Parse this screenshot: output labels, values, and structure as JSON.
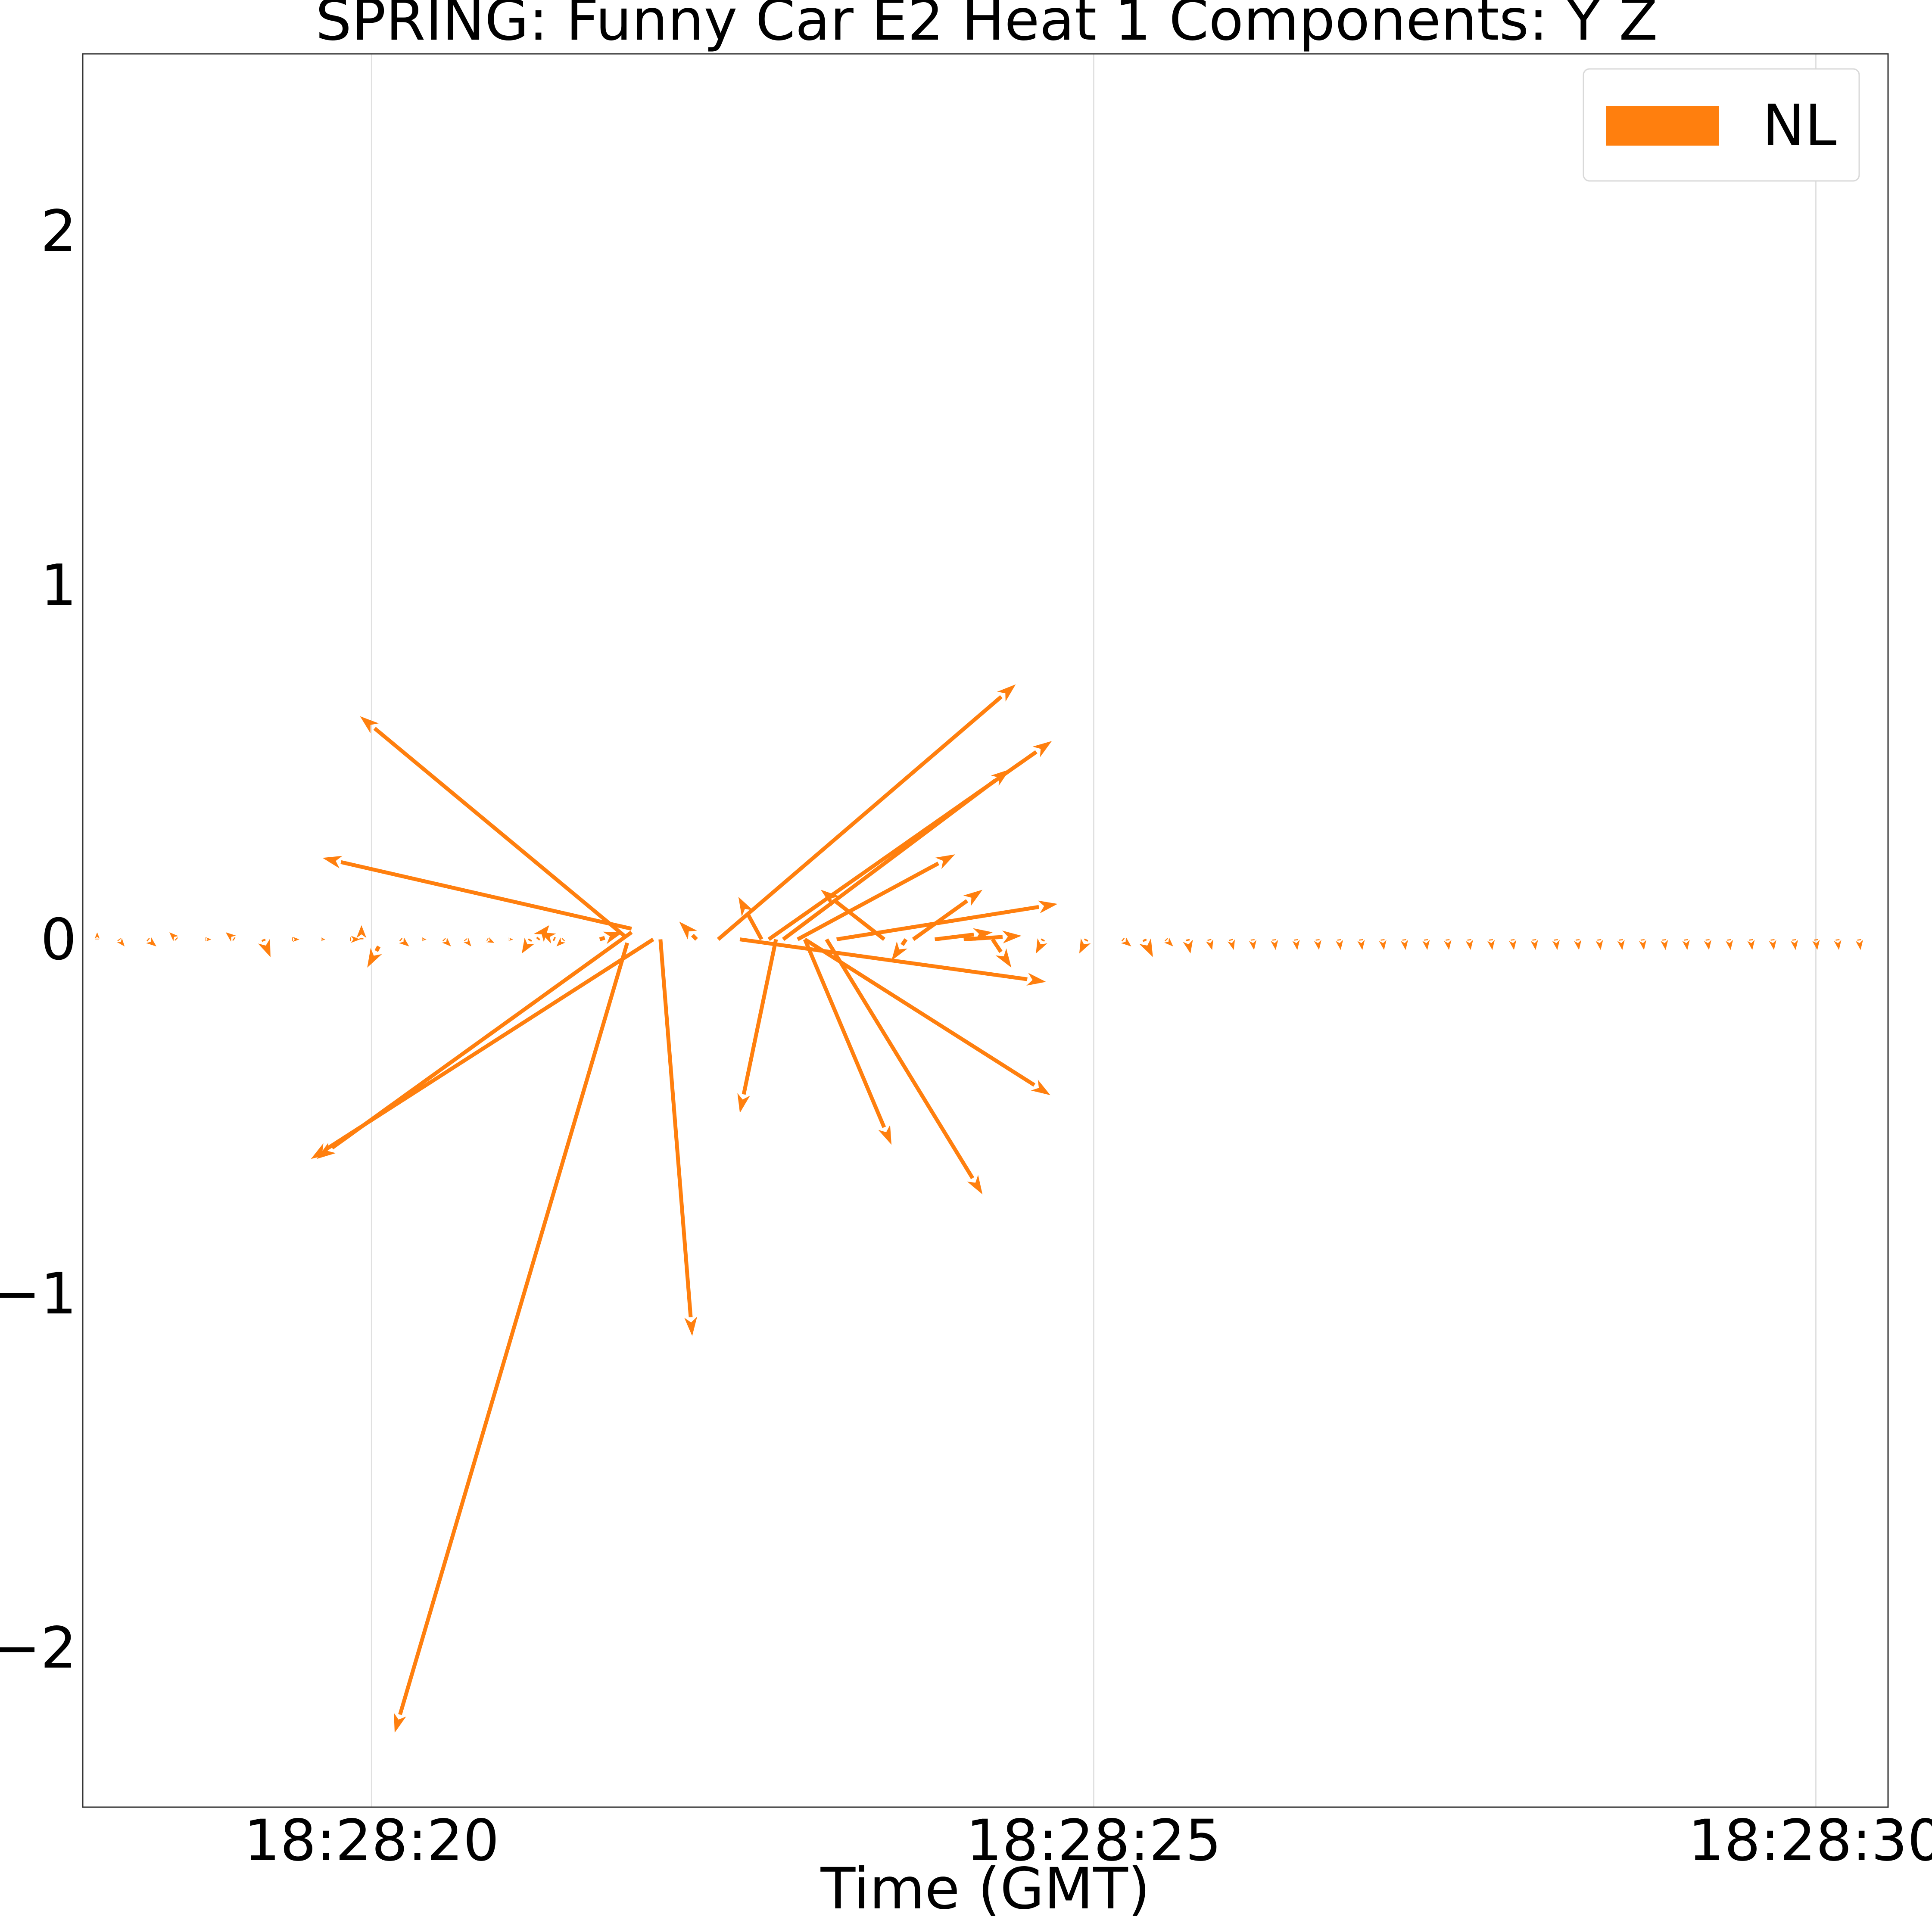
{
  "chart_data": {
    "type": "quiver",
    "title": "SPRING: Funny Car E2 Heat 1 Components: Y Z",
    "xlabel": "Time (GMT)",
    "ylabel": "",
    "x_ticks": [
      "18:28:20",
      "18:28:25",
      "18:28:30"
    ],
    "x_tick_seconds": [
      20,
      25,
      30
    ],
    "xlim_seconds": [
      18.0,
      30.5
    ],
    "y_ticks": [
      2,
      1,
      0,
      -1,
      -2
    ],
    "y_tick_labels": [
      "2",
      "1",
      "0",
      "−1",
      "−2"
    ],
    "ylim": [
      -2.45,
      2.5
    ],
    "grid": "x",
    "legend": {
      "position": "top-right",
      "entries": [
        {
          "label": "NL",
          "color": "#ff7f0e"
        }
      ]
    },
    "series": [
      {
        "name": "NL",
        "color": "#ff7f0e",
        "vectors": [
          [
            18.1,
            0.0,
            0.0,
            0.02
          ],
          [
            18.25,
            0.0,
            0.04,
            -0.02
          ],
          [
            18.45,
            0.0,
            0.06,
            -0.02
          ],
          [
            18.65,
            0.0,
            -0.05,
            0.02
          ],
          [
            18.85,
            0.0,
            0.04,
            0.0
          ],
          [
            19.05,
            0.0,
            -0.06,
            0.02
          ],
          [
            19.25,
            0.0,
            0.05,
            -0.05
          ],
          [
            19.45,
            0.0,
            0.05,
            0.0
          ],
          [
            19.65,
            0.0,
            0.03,
            0.0
          ],
          [
            19.85,
            0.0,
            0.07,
            0.0
          ],
          [
            19.93,
            0.0,
            0.0,
            0.04
          ],
          [
            20.05,
            -0.02,
            -0.08,
            -0.06
          ],
          [
            20.2,
            0.0,
            0.06,
            -0.02
          ],
          [
            20.35,
            0.0,
            0.03,
            0.0
          ],
          [
            20.5,
            0.0,
            0.05,
            -0.02
          ],
          [
            20.65,
            0.0,
            0.04,
            -0.02
          ],
          [
            20.8,
            0.0,
            0.05,
            -0.01
          ],
          [
            20.95,
            0.0,
            0.03,
            0.0
          ],
          [
            21.1,
            0.0,
            -0.06,
            -0.04
          ],
          [
            21.15,
            0.0,
            0.08,
            0.04
          ],
          [
            21.27,
            0.0,
            -0.1,
            0.02
          ],
          [
            21.33,
            0.0,
            -0.05,
            -0.02
          ],
          [
            21.8,
            0.03,
            -2.14,
            0.2
          ],
          [
            21.75,
            0.01,
            -1.83,
            0.62
          ],
          [
            21.58,
            0.0,
            0.16,
            0.02
          ],
          [
            21.8,
            0.02,
            -2.18,
            -0.64
          ],
          [
            21.77,
            -0.01,
            -1.61,
            -2.23
          ],
          [
            21.95,
            0.0,
            -2.37,
            -0.62
          ],
          [
            22.0,
            0.0,
            0.22,
            -1.12
          ],
          [
            22.25,
            0.0,
            -0.12,
            0.05
          ],
          [
            22.4,
            0.0,
            2.06,
            0.72
          ],
          [
            22.8,
            0.0,
            -0.25,
            -0.49
          ],
          [
            22.55,
            0.0,
            2.12,
            -0.12
          ],
          [
            22.75,
            0.0,
            1.96,
            0.56
          ],
          [
            22.85,
            0.0,
            1.57,
            0.48
          ],
          [
            22.7,
            0.0,
            -0.16,
            0.12
          ],
          [
            23.0,
            0.0,
            0.6,
            -0.58
          ],
          [
            22.95,
            0.0,
            1.09,
            0.24
          ],
          [
            23.15,
            0.0,
            1.08,
            -0.72
          ],
          [
            23.22,
            0.0,
            1.53,
            0.1
          ],
          [
            23.0,
            0.0,
            1.7,
            -0.44
          ],
          [
            23.55,
            0.0,
            -0.44,
            0.14
          ],
          [
            23.7,
            0.0,
            -0.1,
            -0.06
          ],
          [
            23.75,
            0.0,
            0.48,
            0.14
          ],
          [
            23.9,
            0.0,
            0.4,
            0.02
          ],
          [
            24.1,
            0.0,
            0.4,
            0.01
          ],
          [
            24.3,
            0.0,
            0.13,
            -0.08
          ],
          [
            24.65,
            0.0,
            -0.05,
            -0.04
          ],
          [
            24.95,
            0.0,
            -0.05,
            -0.04
          ],
          [
            25.2,
            0.0,
            0.06,
            -0.02
          ],
          [
            25.35,
            0.0,
            0.06,
            -0.05
          ],
          [
            25.5,
            0.0,
            0.05,
            -0.02
          ],
          [
            25.65,
            0.0,
            0.02,
            -0.04
          ],
          [
            25.8,
            0.0,
            0.02,
            -0.03
          ],
          [
            25.95,
            0.0,
            0.02,
            -0.03
          ],
          [
            26.1,
            0.0,
            0.01,
            -0.03
          ],
          [
            26.25,
            0.0,
            0.01,
            -0.03
          ],
          [
            26.4,
            0.0,
            0.01,
            -0.03
          ],
          [
            26.55,
            0.0,
            0.01,
            -0.03
          ],
          [
            26.7,
            0.0,
            0.01,
            -0.03
          ],
          [
            26.85,
            0.0,
            0.01,
            -0.03
          ],
          [
            27.0,
            0.0,
            0.01,
            -0.03
          ],
          [
            27.15,
            0.0,
            0.01,
            -0.03
          ],
          [
            27.3,
            0.0,
            0.01,
            -0.03
          ],
          [
            27.45,
            0.0,
            0.01,
            -0.03
          ],
          [
            27.6,
            0.0,
            0.01,
            -0.03
          ],
          [
            27.75,
            0.0,
            0.01,
            -0.03
          ],
          [
            27.9,
            0.0,
            0.01,
            -0.03
          ],
          [
            28.05,
            0.0,
            0.01,
            -0.03
          ],
          [
            28.2,
            0.0,
            0.01,
            -0.03
          ],
          [
            28.35,
            0.0,
            0.01,
            -0.03
          ],
          [
            28.5,
            0.0,
            0.01,
            -0.03
          ],
          [
            28.65,
            0.0,
            0.01,
            -0.03
          ],
          [
            28.8,
            0.0,
            0.01,
            -0.03
          ],
          [
            28.95,
            0.0,
            0.01,
            -0.03
          ],
          [
            29.1,
            0.0,
            0.01,
            -0.03
          ],
          [
            29.25,
            0.0,
            0.01,
            -0.03
          ],
          [
            29.4,
            0.0,
            0.01,
            -0.03
          ],
          [
            29.55,
            0.0,
            0.01,
            -0.03
          ],
          [
            29.7,
            0.0,
            0.01,
            -0.03
          ],
          [
            29.85,
            0.0,
            0.01,
            -0.03
          ],
          [
            30.0,
            0.0,
            0.01,
            -0.03
          ],
          [
            30.15,
            0.0,
            0.01,
            -0.03
          ],
          [
            30.3,
            0.0,
            0.01,
            -0.03
          ]
        ]
      }
    ]
  }
}
